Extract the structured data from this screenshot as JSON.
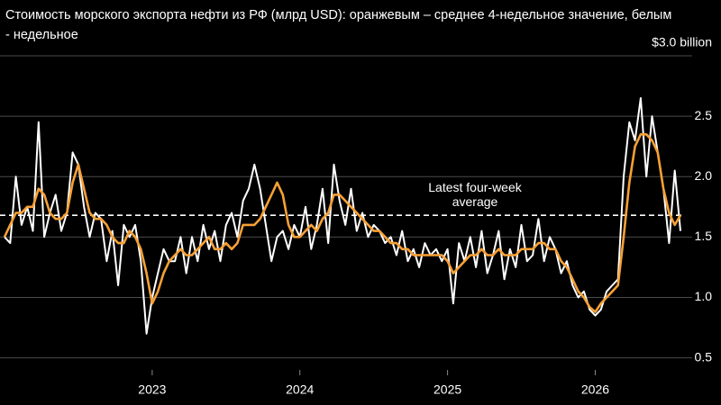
{
  "chart_data": {
    "type": "line",
    "title": "Стоимость морского экспорта нефти из РФ (млрд USD): оранжевым – среднее 4-недельное значение, белым - недельное",
    "categories": [
      null,
      null,
      null,
      null,
      null,
      null,
      null,
      null,
      null,
      null,
      null,
      null,
      null,
      null,
      null,
      null,
      null,
      null,
      null,
      null,
      null,
      null,
      null,
      null,
      null,
      null,
      "2023",
      null,
      null,
      null,
      null,
      null,
      null,
      null,
      null,
      null,
      null,
      null,
      null,
      null,
      null,
      null,
      null,
      null,
      null,
      null,
      null,
      null,
      null,
      null,
      null,
      null,
      "2024",
      null,
      null,
      null,
      null,
      null,
      null,
      null,
      null,
      null,
      null,
      null,
      null,
      null,
      null,
      null,
      null,
      null,
      null,
      null,
      null,
      null,
      null,
      null,
      null,
      null,
      "2025",
      null,
      null,
      null,
      null,
      null,
      null,
      null,
      null,
      null,
      null,
      null,
      null,
      null,
      null,
      null,
      null,
      null,
      null,
      null,
      null,
      null,
      null,
      null,
      null,
      null,
      "2026",
      null,
      null,
      null,
      null,
      null,
      null,
      null,
      null,
      null,
      null,
      null,
      null,
      null,
      null,
      null
    ],
    "series": [
      {
        "name": "недельное",
        "color": "#ffffff",
        "width": 2,
        "values": [
          1.5,
          1.45,
          2.0,
          1.6,
          1.75,
          1.55,
          2.45,
          1.5,
          1.7,
          1.85,
          1.55,
          1.7,
          2.2,
          2.1,
          1.75,
          1.5,
          1.7,
          1.65,
          1.3,
          1.55,
          1.1,
          1.6,
          1.5,
          1.6,
          1.3,
          0.7,
          1.0,
          1.2,
          1.4,
          1.3,
          1.3,
          1.5,
          1.2,
          1.5,
          1.3,
          1.6,
          1.4,
          1.55,
          1.3,
          1.6,
          1.7,
          1.5,
          1.8,
          1.9,
          2.1,
          1.9,
          1.6,
          1.3,
          1.5,
          1.55,
          1.4,
          1.6,
          1.5,
          1.75,
          1.4,
          1.6,
          1.9,
          1.45,
          2.1,
          1.8,
          1.6,
          1.9,
          1.55,
          1.7,
          1.5,
          1.6,
          1.55,
          1.45,
          1.5,
          1.35,
          1.55,
          1.3,
          1.4,
          1.25,
          1.45,
          1.35,
          1.4,
          1.3,
          1.4,
          0.95,
          1.45,
          1.3,
          1.5,
          1.25,
          1.55,
          1.2,
          1.35,
          1.55,
          1.15,
          1.4,
          1.25,
          1.6,
          1.3,
          1.35,
          1.65,
          1.3,
          1.5,
          1.4,
          1.2,
          1.3,
          1.1,
          1.0,
          1.05,
          0.9,
          0.85,
          0.9,
          1.05,
          1.1,
          1.15,
          2.0,
          2.45,
          2.3,
          2.65,
          2.0,
          2.5,
          2.2,
          1.9,
          1.45,
          2.05,
          1.55
        ]
      },
      {
        "name": "среднее 4-недельное",
        "color": "#f7a035",
        "width": 2.6,
        "values": [
          1.5,
          1.6,
          1.7,
          1.7,
          1.75,
          1.75,
          1.9,
          1.85,
          1.7,
          1.65,
          1.65,
          1.7,
          1.95,
          2.1,
          1.9,
          1.7,
          1.65,
          1.65,
          1.6,
          1.5,
          1.45,
          1.45,
          1.55,
          1.5,
          1.4,
          1.2,
          0.95,
          1.05,
          1.2,
          1.3,
          1.35,
          1.4,
          1.35,
          1.35,
          1.4,
          1.45,
          1.5,
          1.4,
          1.4,
          1.45,
          1.4,
          1.45,
          1.6,
          1.6,
          1.6,
          1.65,
          1.75,
          1.85,
          1.95,
          1.85,
          1.6,
          1.5,
          1.5,
          1.55,
          1.6,
          1.55,
          1.65,
          1.7,
          1.85,
          1.85,
          1.8,
          1.75,
          1.7,
          1.65,
          1.6,
          1.55,
          1.55,
          1.5,
          1.45,
          1.45,
          1.4,
          1.4,
          1.35,
          1.35,
          1.35,
          1.35,
          1.35,
          1.35,
          1.3,
          1.2,
          1.25,
          1.3,
          1.35,
          1.35,
          1.4,
          1.35,
          1.35,
          1.4,
          1.35,
          1.35,
          1.35,
          1.4,
          1.4,
          1.4,
          1.45,
          1.45,
          1.4,
          1.4,
          1.3,
          1.25,
          1.15,
          1.05,
          1.0,
          0.92,
          0.88,
          0.95,
          1.0,
          1.05,
          1.1,
          1.5,
          1.95,
          2.25,
          2.35,
          2.35,
          2.3,
          2.2,
          1.9,
          1.7,
          1.6,
          1.68
        ]
      }
    ],
    "ref_line": {
      "value": 1.68,
      "label": [
        "Latest four-week",
        "average"
      ]
    },
    "ylim": [
      0.4,
      3.0
    ],
    "yticks": [
      0.5,
      {
        "value": 1,
        "label": "1.0"
      },
      1.5,
      {
        "value": 2,
        "label": "2.0"
      },
      2.5,
      {
        "value": 3,
        "label": "$3.0 billion"
      }
    ],
    "grid": true
  }
}
